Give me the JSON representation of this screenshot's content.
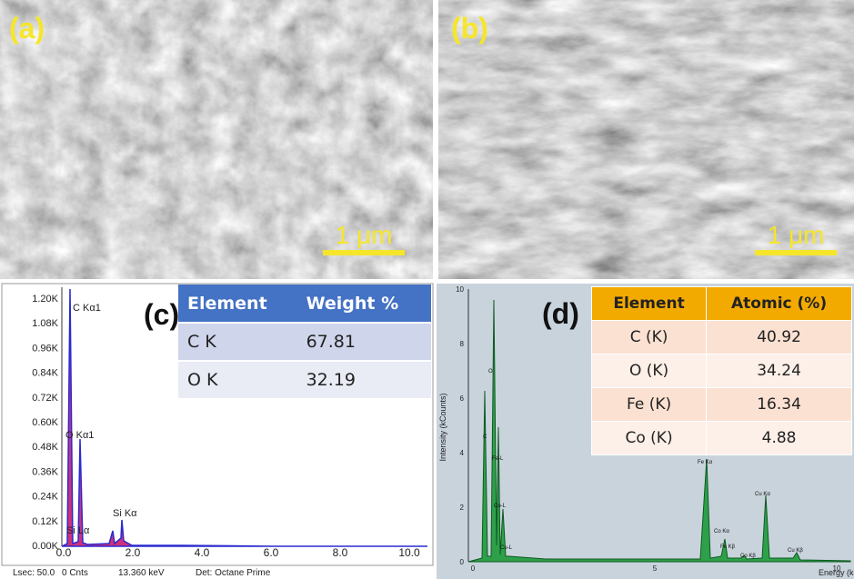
{
  "panels": {
    "a": {
      "label": "(a)",
      "scale_bar": "1 μm"
    },
    "b": {
      "label": "(b)",
      "scale_bar": "1 μm"
    },
    "c": {
      "label": "(c)",
      "y_ticks": [
        "1.20K",
        "1.08K",
        "0.96K",
        "0.84K",
        "0.72K",
        "0.60K",
        "0.48K",
        "0.36K",
        "0.24K",
        "0.12K",
        "0.00K"
      ],
      "x_ticks": [
        "0.0",
        "2.0",
        "4.0",
        "6.0",
        "8.0",
        "10.0"
      ],
      "peak_labels": [
        "C  Kα1",
        "O  Kα1",
        "Si Kα",
        "Si Lα"
      ],
      "table": {
        "header": [
          "Element",
          "Weight %"
        ],
        "rows": [
          [
            "C K",
            "67.81"
          ],
          [
            "O K",
            "32.19"
          ]
        ]
      },
      "footer": [
        "Lsec: 50.0",
        "0 Cnts",
        "13.360 keV",
        "Det: Octane Prime"
      ]
    },
    "d": {
      "label": "(d)",
      "y_ticks": [
        "10",
        "8",
        "6",
        "4",
        "2",
        "0"
      ],
      "x_ticks": [
        "0",
        "5",
        "10"
      ],
      "y_axis_title": "Intensity (kCounts)",
      "x_axis_title": "Energy (keV)",
      "peak_labels": [
        "C",
        "O",
        "Fe-L",
        "Co-L",
        "Cu-L",
        "Fe Kα",
        "Co Kα",
        "Fe Kβ",
        "Co Kβ",
        "Cu Kα",
        "Cu Kβ"
      ],
      "table": {
        "header": [
          "Element",
          "Atomic (%)"
        ],
        "rows": [
          [
            "C (K)",
            "40.92"
          ],
          [
            "O (K)",
            "34.24"
          ],
          [
            "Fe (K)",
            "16.34"
          ],
          [
            "Co (K)",
            "4.88"
          ]
        ]
      }
    }
  }
}
